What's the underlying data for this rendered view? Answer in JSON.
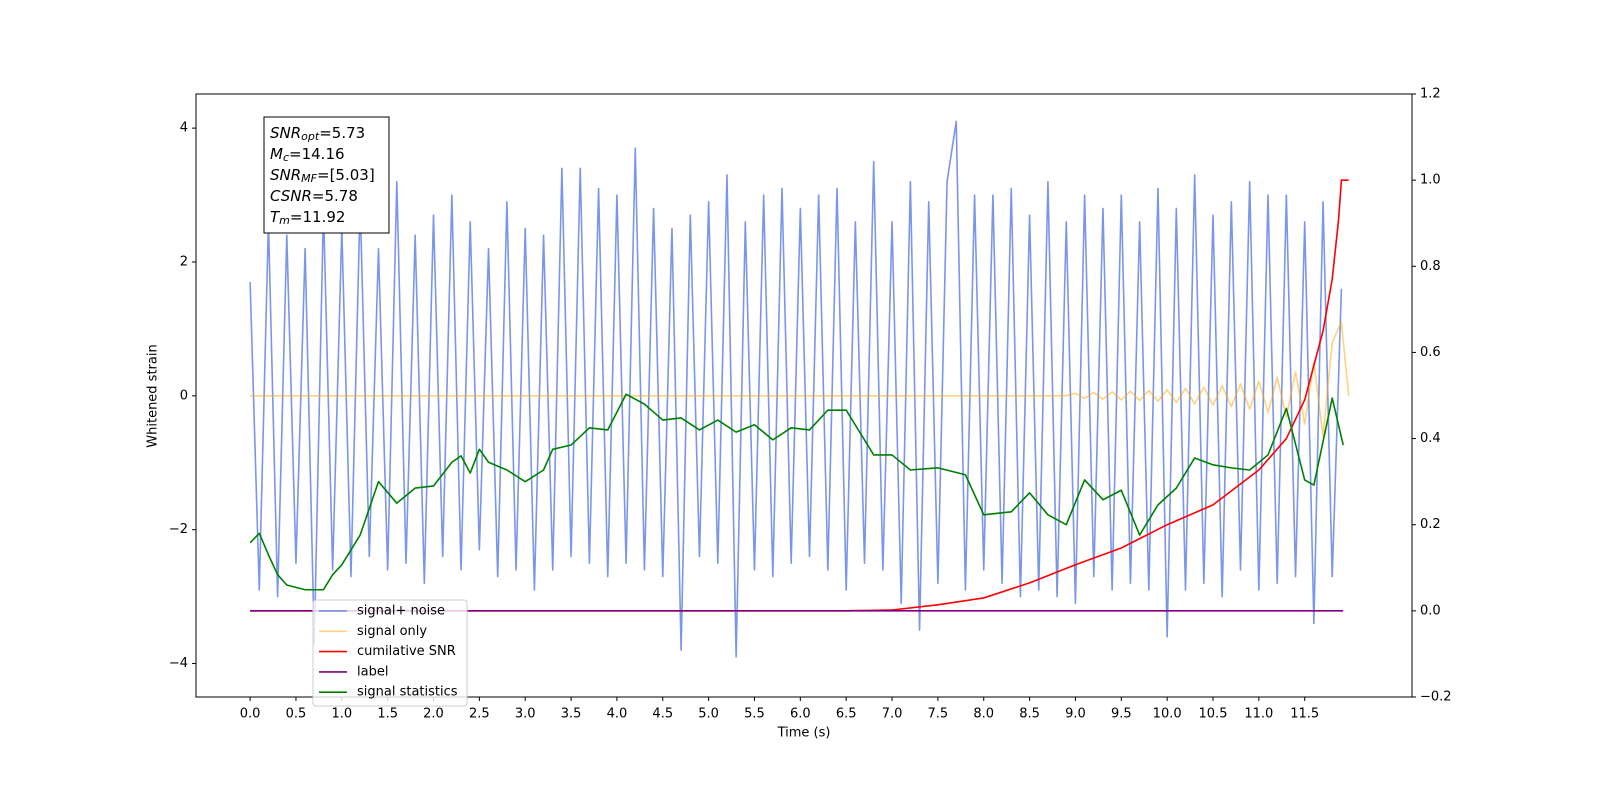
{
  "chart_data": {
    "type": "line",
    "xlabel": "Time (s)",
    "ylabel": "Whitened strain",
    "xlim": [
      -0.59,
      12.67
    ],
    "ylim": [
      -4.5,
      4.51
    ],
    "y2lim": [
      -0.2,
      1.2
    ],
    "xticks": [
      {
        "value": 0,
        "label": "0.0"
      },
      0.5,
      {
        "value": 1,
        "label": "1.0"
      },
      1.5,
      {
        "value": 2,
        "label": "2.0"
      },
      2.5,
      {
        "value": 3,
        "label": "3.0"
      },
      3.5,
      {
        "value": 4,
        "label": "4.0"
      },
      4.5,
      {
        "value": 5,
        "label": "5.0"
      },
      5.5,
      {
        "value": 6,
        "label": "6.0"
      },
      6.5,
      {
        "value": 7,
        "label": "7.0"
      },
      7.5,
      {
        "value": 8,
        "label": "8.0"
      },
      8.5,
      {
        "value": 9,
        "label": "9.0"
      },
      9.5,
      {
        "value": 10,
        "label": "10.0"
      },
      10.5,
      {
        "value": 11,
        "label": "11.0"
      },
      11.5
    ],
    "yticks": [
      {
        "value": -4,
        "label": "−4"
      },
      {
        "value": -2,
        "label": "−2"
      },
      0,
      2,
      4
    ],
    "y2ticks": [
      {
        "value": -0.2,
        "label": "−0.2"
      },
      {
        "value": 0,
        "label": "0.0"
      },
      0.2,
      0.4,
      0.6,
      0.8,
      {
        "value": 1,
        "label": "1.0"
      },
      1.2
    ],
    "legend": "lower left",
    "annotation": [
      [
        "SNR",
        "opt",
        "=5.73"
      ],
      [
        "M",
        "c",
        "=14.16"
      ],
      [
        "SNR",
        "MF",
        "=[5.03]"
      ],
      [
        "CSNR",
        "=5.78"
      ],
      [
        "T",
        "m",
        "=11.92"
      ]
    ],
    "series": [
      {
        "name": "signal+ noise",
        "color": "#4169e1",
        "alpha": 0.7,
        "x": [
          0.0,
          0.1,
          0.2,
          0.3,
          0.4,
          0.5,
          0.6,
          0.7,
          0.8,
          0.9,
          1.0,
          1.1,
          1.2,
          1.3,
          1.4,
          1.5,
          1.6,
          1.7,
          1.8,
          1.9,
          2.0,
          2.1,
          2.2,
          2.3,
          2.4,
          2.5,
          2.6,
          2.7,
          2.8,
          2.9,
          3.0,
          3.1,
          3.2,
          3.3,
          3.4,
          3.5,
          3.6,
          3.7,
          3.8,
          3.9,
          4.0,
          4.1,
          4.2,
          4.3,
          4.4,
          4.5,
          4.6,
          4.7,
          4.8,
          4.9,
          5.0,
          5.1,
          5.2,
          5.3,
          5.4,
          5.5,
          5.6,
          5.7,
          5.8,
          5.9,
          6.0,
          6.1,
          6.2,
          6.3,
          6.4,
          6.5,
          6.6,
          6.7,
          6.8,
          6.9,
          7.0,
          7.1,
          7.2,
          7.3,
          7.4,
          7.5,
          7.6,
          7.7,
          7.8,
          7.9,
          8.0,
          8.1,
          8.2,
          8.3,
          8.4,
          8.5,
          8.6,
          8.7,
          8.8,
          8.9,
          9.0,
          9.1,
          9.2,
          9.3,
          9.4,
          9.5,
          9.6,
          9.7,
          9.8,
          9.9,
          10.0,
          10.1,
          10.2,
          10.3,
          10.4,
          10.5,
          10.6,
          10.7,
          10.8,
          10.9,
          11.0,
          11.1,
          11.2,
          11.3,
          11.4,
          11.5,
          11.6,
          11.7,
          11.8,
          11.9
        ],
        "values": [
          1.7,
          -2.9,
          2.6,
          -3.0,
          2.4,
          -2.5,
          2.2,
          -3.7,
          2.8,
          -2.6,
          2.5,
          -2.7,
          2.9,
          -2.4,
          2.2,
          -2.6,
          3.2,
          -2.5,
          2.4,
          -2.8,
          2.7,
          -2.4,
          3.0,
          -2.6,
          2.6,
          -2.3,
          2.2,
          -2.7,
          2.9,
          -2.6,
          2.5,
          -2.9,
          2.4,
          -2.6,
          3.4,
          -2.4,
          3.4,
          -2.5,
          3.1,
          -2.7,
          3.0,
          -2.5,
          3.7,
          -2.6,
          2.8,
          -2.7,
          2.5,
          -3.8,
          2.7,
          -2.4,
          2.9,
          -2.5,
          3.3,
          -3.9,
          2.6,
          -2.6,
          3.0,
          -2.7,
          3.1,
          -2.5,
          2.8,
          -2.4,
          3.0,
          -2.6,
          3.1,
          -2.9,
          2.6,
          -2.5,
          3.5,
          -2.6,
          2.6,
          -3.1,
          3.2,
          -3.5,
          2.9,
          -2.8,
          3.2,
          4.1,
          -2.9,
          3.0,
          -2.6,
          3.0,
          -2.8,
          3.1,
          -3.0,
          2.7,
          -2.9,
          3.2,
          -3.0,
          2.6,
          -3.1,
          3.0,
          -2.7,
          2.8,
          -2.9,
          3.0,
          -2.8,
          2.6,
          -2.9,
          3.1,
          -3.6,
          2.8,
          -2.9,
          3.3,
          -2.8,
          2.7,
          -3.0,
          2.9,
          -2.6,
          3.2,
          -2.9,
          3.0,
          -2.8,
          3.0,
          -2.7,
          2.6,
          -3.4,
          2.9,
          -2.7,
          1.6
        ]
      },
      {
        "name": "signal only",
        "color": "#ffa500",
        "alpha": 0.5,
        "x": [
          0.0,
          8.9,
          9.0,
          9.1,
          9.2,
          9.3,
          9.4,
          9.5,
          9.6,
          9.7,
          9.8,
          9.9,
          10.0,
          10.1,
          10.2,
          10.3,
          10.4,
          10.5,
          10.6,
          10.7,
          10.8,
          10.9,
          11.0,
          11.1,
          11.2,
          11.3,
          11.4,
          11.5,
          11.6,
          11.7,
          11.8,
          11.9,
          11.98
        ],
        "values": [
          0,
          0,
          0.04,
          -0.04,
          0.05,
          -0.05,
          0.06,
          -0.06,
          0.07,
          -0.07,
          0.08,
          -0.08,
          0.09,
          -0.1,
          0.11,
          -0.12,
          0.13,
          -0.14,
          0.15,
          -0.16,
          0.18,
          -0.2,
          0.22,
          -0.25,
          0.28,
          -0.32,
          0.36,
          -0.42,
          0.5,
          -0.6,
          0.8,
          1.1,
          0
        ]
      },
      {
        "name": "cumilative SNR",
        "color": "#ff0000",
        "axis": "y2",
        "x": [
          0,
          6.5,
          7.0,
          7.5,
          8.0,
          8.5,
          9.0,
          9.5,
          10.0,
          10.5,
          11.0,
          11.3,
          11.5,
          11.7,
          11.8,
          11.87,
          11.9,
          11.92,
          11.98
        ],
        "values": [
          0,
          0,
          0.002,
          0.014,
          0.03,
          0.065,
          0.107,
          0.146,
          0.2,
          0.246,
          0.327,
          0.4,
          0.49,
          0.65,
          0.77,
          0.91,
          1.0,
          1.0,
          1.0
        ]
      },
      {
        "name": "label",
        "color": "#800080",
        "axis": "y2",
        "x": [
          0,
          11.92
        ],
        "values": [
          0,
          0
        ]
      },
      {
        "name": "signal statistics",
        "color": "#008000",
        "axis": "y2",
        "x": [
          0.0,
          0.1,
          0.2,
          0.3,
          0.4,
          0.6,
          0.8,
          0.9,
          1.0,
          1.2,
          1.4,
          1.6,
          1.8,
          2.0,
          2.2,
          2.3,
          2.4,
          2.5,
          2.6,
          2.8,
          3.0,
          3.2,
          3.3,
          3.5,
          3.7,
          3.9,
          4.1,
          4.3,
          4.5,
          4.7,
          4.9,
          5.1,
          5.3,
          5.5,
          5.7,
          5.9,
          6.1,
          6.3,
          6.5,
          6.8,
          7.0,
          7.2,
          7.5,
          7.8,
          8.0,
          8.3,
          8.5,
          8.7,
          8.9,
          9.1,
          9.3,
          9.5,
          9.7,
          9.9,
          10.1,
          10.3,
          10.5,
          10.7,
          10.9,
          11.1,
          11.3,
          11.5,
          11.6,
          11.8,
          11.92
        ],
        "values": [
          0.158,
          0.18,
          0.13,
          0.084,
          0.06,
          0.049,
          0.049,
          0.084,
          0.107,
          0.176,
          0.3,
          0.25,
          0.285,
          0.29,
          0.345,
          0.36,
          0.32,
          0.375,
          0.345,
          0.327,
          0.3,
          0.327,
          0.375,
          0.385,
          0.425,
          0.42,
          0.503,
          0.48,
          0.443,
          0.448,
          0.42,
          0.443,
          0.415,
          0.432,
          0.397,
          0.425,
          0.42,
          0.466,
          0.466,
          0.362,
          0.362,
          0.327,
          0.332,
          0.316,
          0.223,
          0.23,
          0.274,
          0.223,
          0.2,
          0.304,
          0.258,
          0.28,
          0.176,
          0.246,
          0.285,
          0.355,
          0.339,
          0.332,
          0.327,
          0.362,
          0.47,
          0.304,
          0.292,
          0.494,
          0.385
        ]
      }
    ]
  }
}
